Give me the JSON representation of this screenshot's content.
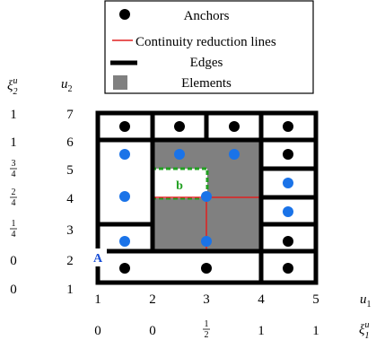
{
  "legend": {
    "items": [
      {
        "label": "Anchors",
        "symbol": "black-dot"
      },
      {
        "label": "Continuity reduction lines",
        "symbol": "red-line"
      },
      {
        "label": "Edges",
        "symbol": "black-thick-line"
      },
      {
        "label": "Elements",
        "symbol": "gray-square"
      }
    ]
  },
  "axes": {
    "u1_label": "u",
    "u1_sub": "1",
    "u2_label": "u",
    "u2_sub": "2",
    "xi1_label": "ξ",
    "xi1_sub": "1",
    "xi1_sup": "u",
    "xi2_label": "ξ",
    "xi2_sub": "2",
    "xi2_sup": "u",
    "u1_ticks": [
      "1",
      "2",
      "3",
      "4",
      "5"
    ],
    "u2_ticks": [
      "1",
      "2",
      "3",
      "4",
      "5",
      "6",
      "7"
    ],
    "xi1_knots": [
      "0",
      "0",
      "1/2",
      "1",
      "1"
    ],
    "xi2_knots": [
      "0",
      "0",
      "1/4",
      "2/4",
      "3/4",
      "1",
      "1"
    ]
  },
  "annotations": {
    "point_a": "A",
    "region_b": "b"
  },
  "colors": {
    "anchor_black": "#000000",
    "anchor_blue": "#1a73e8",
    "element_gray": "#808080",
    "reduction_line": "#e02020",
    "region_outline": "#22a022",
    "annotation_a": "#1a4fd6",
    "annotation_b": "#22a022"
  }
}
